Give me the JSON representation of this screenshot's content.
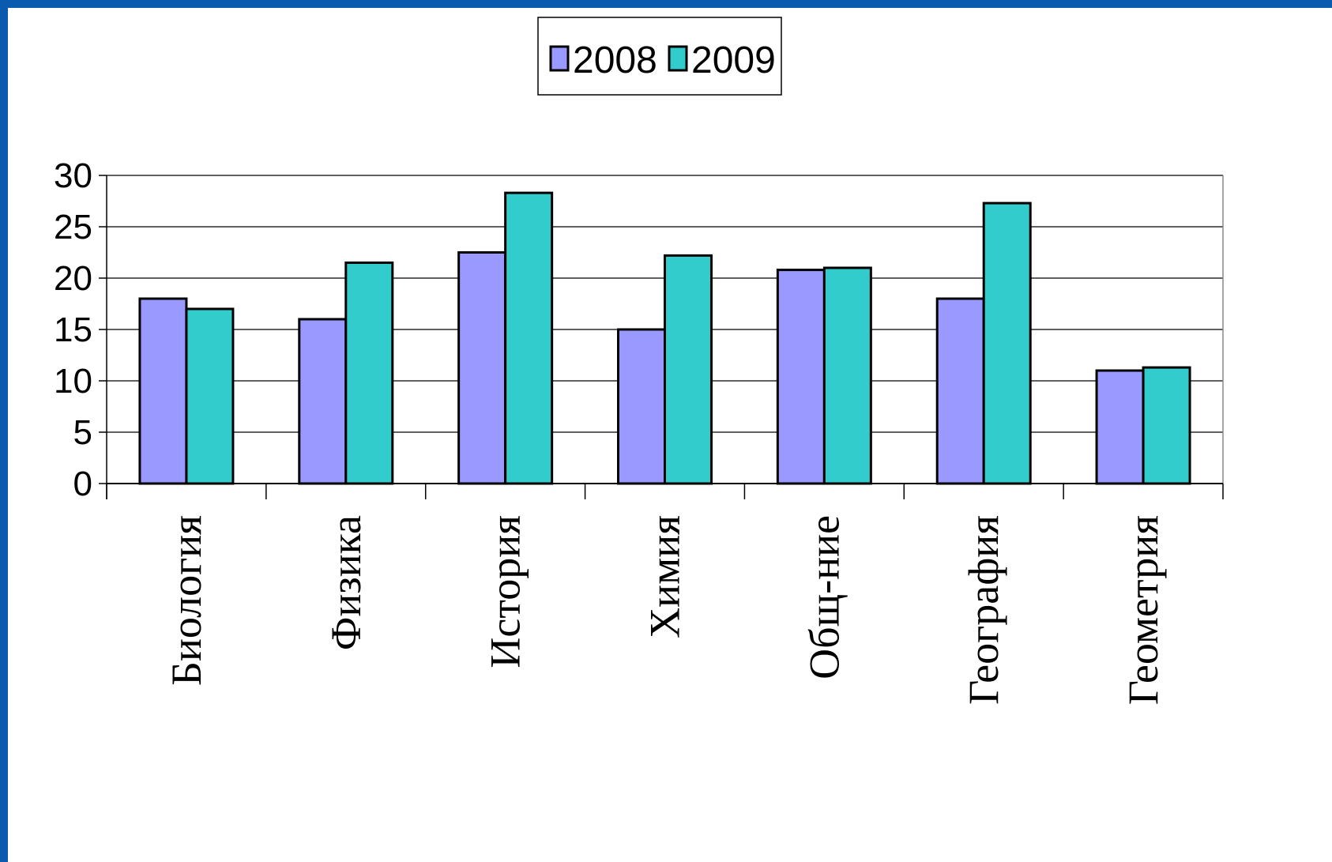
{
  "chart_data": {
    "type": "bar",
    "categories": [
      "Биология",
      "Физика",
      "История",
      "Химия",
      "Общ-ние",
      "География",
      "Геометрия"
    ],
    "series": [
      {
        "name": "2008",
        "values": [
          18,
          16,
          22.5,
          15,
          20.8,
          18,
          11
        ],
        "color": "#9999ff"
      },
      {
        "name": "2009",
        "values": [
          17,
          21.5,
          28.3,
          22.2,
          21,
          27.3,
          11.3
        ],
        "color": "#33cccc"
      }
    ],
    "yticks": [
      0,
      5,
      10,
      15,
      20,
      25,
      30
    ],
    "ylim": [
      0,
      30
    ],
    "grid": true,
    "legend_position": "top-center"
  }
}
